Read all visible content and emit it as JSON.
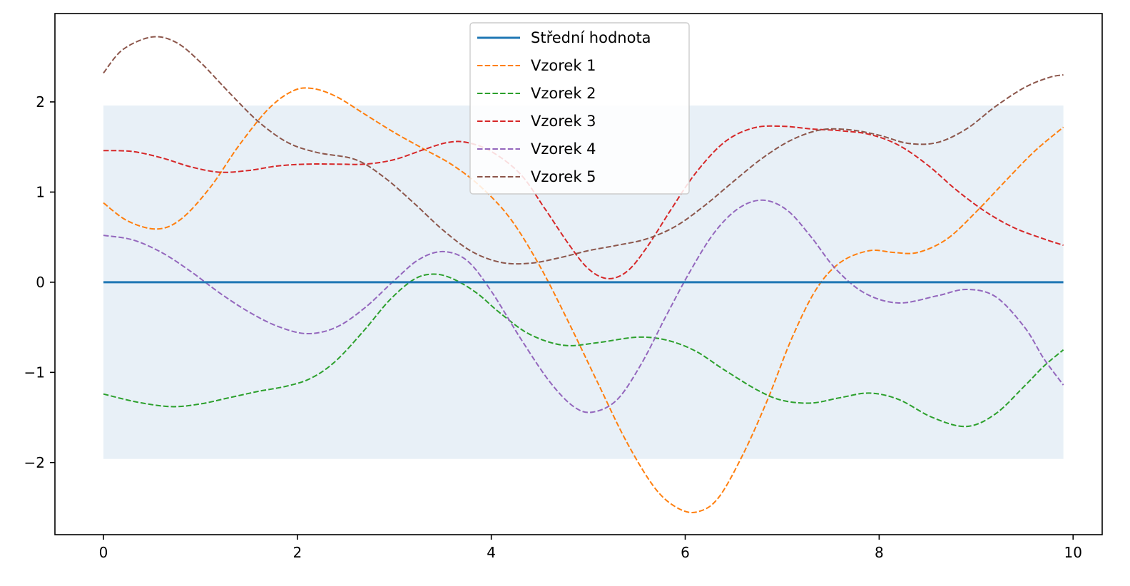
{
  "chart_data": {
    "type": "line",
    "title": "",
    "xlabel": "",
    "ylabel": "",
    "xlim": [
      -0.5,
      10.3
    ],
    "ylim": [
      -2.8,
      2.98
    ],
    "x_ticks": [
      0,
      2,
      4,
      6,
      8,
      10
    ],
    "x_tick_labels": [
      "0",
      "2",
      "4",
      "6",
      "8",
      "10"
    ],
    "y_ticks": [
      -2,
      -1,
      0,
      1,
      2
    ],
    "y_tick_labels": [
      "−2",
      "−1",
      "0",
      "1",
      "2"
    ],
    "grid": false,
    "legend_position": "top-center",
    "band": {
      "x_range": [
        0,
        9.9
      ],
      "lower": -1.96,
      "upper": 1.96,
      "color": "#e8f0f7"
    },
    "series": [
      {
        "name": "Střední hodnota",
        "style": "solid",
        "color": "#1f77b4",
        "x": [
          0,
          9.9
        ],
        "y": [
          0,
          0
        ]
      },
      {
        "name": "Vzorek 1",
        "style": "dashed",
        "color": "#ff7f0e",
        "x": [
          0,
          0.25,
          0.55,
          0.8,
          1.1,
          1.4,
          1.7,
          1.95,
          2.15,
          2.4,
          2.7,
          3.0,
          3.3,
          3.6,
          3.9,
          4.2,
          4.5,
          4.8,
          5.1,
          5.4,
          5.7,
          5.95,
          6.15,
          6.35,
          6.6,
          6.85,
          7.1,
          7.35,
          7.6,
          7.9,
          8.15,
          8.4,
          8.7,
          9.0,
          9.3,
          9.6,
          9.9
        ],
        "y": [
          0.88,
          0.68,
          0.59,
          0.7,
          1.05,
          1.52,
          1.92,
          2.12,
          2.15,
          2.06,
          1.86,
          1.66,
          1.48,
          1.3,
          1.05,
          0.7,
          0.18,
          -0.45,
          -1.12,
          -1.78,
          -2.3,
          -2.52,
          -2.54,
          -2.38,
          -1.9,
          -1.3,
          -0.62,
          -0.08,
          0.22,
          0.35,
          0.33,
          0.33,
          0.48,
          0.78,
          1.12,
          1.45,
          1.72
        ]
      },
      {
        "name": "Vzorek 2",
        "style": "dashed",
        "color": "#2ca02c",
        "x": [
          0,
          0.35,
          0.7,
          1.0,
          1.3,
          1.6,
          1.9,
          2.15,
          2.4,
          2.7,
          2.95,
          3.2,
          3.4,
          3.6,
          3.85,
          4.1,
          4.4,
          4.75,
          5.1,
          5.5,
          5.8,
          6.1,
          6.4,
          6.75,
          7.0,
          7.3,
          7.6,
          7.9,
          8.2,
          8.55,
          8.9,
          9.2,
          9.5,
          9.7,
          9.9
        ],
        "y": [
          -1.24,
          -1.33,
          -1.38,
          -1.35,
          -1.28,
          -1.21,
          -1.15,
          -1.06,
          -0.87,
          -0.52,
          -0.2,
          0.03,
          0.09,
          0.04,
          -0.12,
          -0.35,
          -0.58,
          -0.7,
          -0.67,
          -0.61,
          -0.64,
          -0.76,
          -0.97,
          -1.2,
          -1.31,
          -1.34,
          -1.28,
          -1.23,
          -1.3,
          -1.5,
          -1.6,
          -1.46,
          -1.15,
          -0.93,
          -0.75
        ]
      },
      {
        "name": "Vzorek 3",
        "style": "dashed",
        "color": "#d62728",
        "x": [
          0,
          0.3,
          0.6,
          0.9,
          1.2,
          1.5,
          1.8,
          2.1,
          2.4,
          2.7,
          3.0,
          3.3,
          3.55,
          3.75,
          4.0,
          4.3,
          4.55,
          4.8,
          5.0,
          5.2,
          5.4,
          5.6,
          5.85,
          6.1,
          6.4,
          6.7,
          7.0,
          7.3,
          7.6,
          7.9,
          8.2,
          8.5,
          8.8,
          9.1,
          9.4,
          9.7,
          9.9
        ],
        "y": [
          1.46,
          1.45,
          1.38,
          1.28,
          1.22,
          1.24,
          1.29,
          1.31,
          1.31,
          1.31,
          1.36,
          1.47,
          1.55,
          1.55,
          1.45,
          1.2,
          0.82,
          0.42,
          0.15,
          0.04,
          0.12,
          0.38,
          0.8,
          1.2,
          1.55,
          1.71,
          1.73,
          1.7,
          1.68,
          1.64,
          1.52,
          1.3,
          1.02,
          0.78,
          0.6,
          0.48,
          0.41
        ]
      },
      {
        "name": "Vzorek 4",
        "style": "dashed",
        "color": "#9467bd",
        "x": [
          0,
          0.3,
          0.6,
          0.9,
          1.2,
          1.5,
          1.8,
          2.1,
          2.4,
          2.7,
          3.0,
          3.25,
          3.5,
          3.75,
          4.0,
          4.3,
          4.6,
          4.85,
          5.05,
          5.3,
          5.55,
          5.8,
          6.05,
          6.3,
          6.55,
          6.8,
          7.05,
          7.3,
          7.55,
          7.85,
          8.2,
          8.6,
          8.9,
          9.2,
          9.5,
          9.7,
          9.9
        ],
        "y": [
          0.52,
          0.47,
          0.33,
          0.12,
          -0.12,
          -0.33,
          -0.49,
          -0.57,
          -0.5,
          -0.28,
          0.02,
          0.25,
          0.34,
          0.24,
          -0.1,
          -0.62,
          -1.1,
          -1.38,
          -1.44,
          -1.3,
          -0.9,
          -0.38,
          0.12,
          0.55,
          0.82,
          0.91,
          0.8,
          0.5,
          0.15,
          -0.12,
          -0.23,
          -0.15,
          -0.08,
          -0.16,
          -0.5,
          -0.85,
          -1.14
        ]
      },
      {
        "name": "Vzorek 5",
        "style": "dashed",
        "color": "#8c564b",
        "x": [
          0,
          0.2,
          0.5,
          0.75,
          1.0,
          1.3,
          1.6,
          1.9,
          2.2,
          2.6,
          2.9,
          3.2,
          3.5,
          3.8,
          4.1,
          4.4,
          4.7,
          5.0,
          5.3,
          5.6,
          5.9,
          6.2,
          6.5,
          6.8,
          7.1,
          7.4,
          7.7,
          8.0,
          8.3,
          8.6,
          8.9,
          9.2,
          9.5,
          9.75,
          9.9
        ],
        "y": [
          2.32,
          2.58,
          2.72,
          2.66,
          2.44,
          2.1,
          1.78,
          1.55,
          1.44,
          1.36,
          1.16,
          0.88,
          0.58,
          0.34,
          0.22,
          0.21,
          0.27,
          0.35,
          0.41,
          0.48,
          0.62,
          0.85,
          1.12,
          1.38,
          1.58,
          1.69,
          1.69,
          1.63,
          1.54,
          1.55,
          1.7,
          1.95,
          2.16,
          2.27,
          2.3
        ]
      }
    ]
  }
}
